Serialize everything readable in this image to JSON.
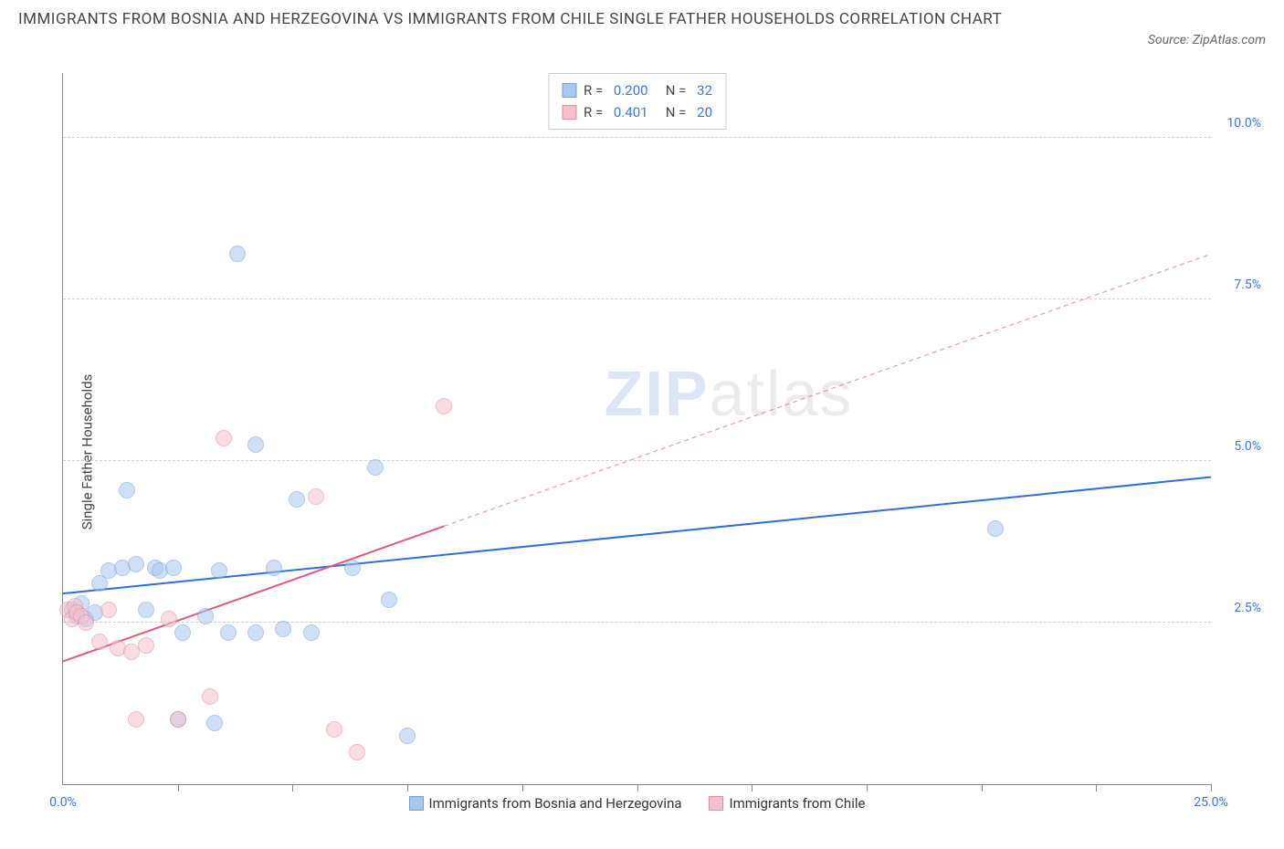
{
  "header": {
    "title": "IMMIGRANTS FROM BOSNIA AND HERZEGOVINA VS IMMIGRANTS FROM CHILE SINGLE FATHER HOUSEHOLDS CORRELATION CHART",
    "source": "Source: ZipAtlas.com"
  },
  "watermark": {
    "part1": "ZIP",
    "part2": "atlas"
  },
  "chart": {
    "type": "scatter",
    "ylabel": "Single Father Households",
    "x_domain": [
      0,
      25
    ],
    "y_domain": [
      0,
      11
    ],
    "y_grid": [
      2.5,
      5.0,
      7.5,
      10.0
    ],
    "y_tick_labels": [
      "2.5%",
      "5.0%",
      "7.5%",
      "10.0%"
    ],
    "x_grid": [
      2.5,
      5.0,
      7.5,
      10.0,
      12.5,
      15.0,
      17.5,
      20.0,
      22.5,
      25.0
    ],
    "x_tick_labels": {
      "0": "0.0%",
      "25": "25.0%"
    },
    "background_color": "#ffffff",
    "grid_color": "#d0d0d0",
    "axis_color": "#888888",
    "marker_radius": 9,
    "marker_opacity": 0.55,
    "series": [
      {
        "name": "Immigrants from Bosnia and Herzegovina",
        "fill": "#a9c7ef",
        "stroke": "#6fa0e0",
        "line_color": "#2f6fd6",
        "R": "0.200",
        "N": "32",
        "trend": {
          "x1": 0,
          "y1": 2.95,
          "x2": 25,
          "y2": 4.75,
          "dash": false,
          "dash_after_x": null
        },
        "points": [
          [
            0.2,
            2.7
          ],
          [
            0.3,
            2.6
          ],
          [
            0.5,
            2.55
          ],
          [
            0.4,
            2.8
          ],
          [
            0.7,
            2.65
          ],
          [
            0.8,
            3.1
          ],
          [
            1.0,
            3.3
          ],
          [
            1.3,
            3.35
          ],
          [
            1.4,
            4.55
          ],
          [
            1.6,
            3.4
          ],
          [
            1.8,
            2.7
          ],
          [
            2.0,
            3.35
          ],
          [
            2.1,
            3.3
          ],
          [
            2.4,
            3.35
          ],
          [
            2.5,
            1.0
          ],
          [
            2.6,
            2.35
          ],
          [
            3.1,
            2.6
          ],
          [
            3.3,
            0.95
          ],
          [
            3.4,
            3.3
          ],
          [
            3.6,
            2.35
          ],
          [
            3.8,
            8.2
          ],
          [
            4.2,
            2.35
          ],
          [
            4.2,
            5.25
          ],
          [
            4.6,
            3.35
          ],
          [
            4.8,
            2.4
          ],
          [
            5.1,
            4.4
          ],
          [
            5.4,
            2.35
          ],
          [
            6.3,
            3.35
          ],
          [
            6.8,
            4.9
          ],
          [
            7.1,
            2.85
          ],
          [
            7.5,
            0.75
          ],
          [
            20.3,
            3.95
          ]
        ]
      },
      {
        "name": "Immigrants from Chile",
        "fill": "#f4c2cd",
        "stroke": "#e689a0",
        "line_color": "#e05a7d",
        "R": "0.401",
        "N": "20",
        "trend": {
          "x1": 0,
          "y1": 1.9,
          "x2": 25,
          "y2": 8.2,
          "dash": false,
          "dash_after_x": 8.3
        },
        "points": [
          [
            0.1,
            2.7
          ],
          [
            0.2,
            2.55
          ],
          [
            0.25,
            2.75
          ],
          [
            0.3,
            2.65
          ],
          [
            0.4,
            2.6
          ],
          [
            0.5,
            2.5
          ],
          [
            0.8,
            2.2
          ],
          [
            1.0,
            2.7
          ],
          [
            1.2,
            2.1
          ],
          [
            1.5,
            2.05
          ],
          [
            1.6,
            1.0
          ],
          [
            1.8,
            2.15
          ],
          [
            2.3,
            2.55
          ],
          [
            2.5,
            1.0
          ],
          [
            3.2,
            1.35
          ],
          [
            3.5,
            5.35
          ],
          [
            5.5,
            4.45
          ],
          [
            5.9,
            0.85
          ],
          [
            6.4,
            0.5
          ],
          [
            8.3,
            5.85
          ]
        ]
      }
    ],
    "legend_top": {
      "r_prefix": "R = ",
      "n_prefix": "   N = "
    },
    "legend_bottom_labels": [
      "Immigrants from Bosnia and Herzegovina",
      "Immigrants from Chile"
    ]
  }
}
